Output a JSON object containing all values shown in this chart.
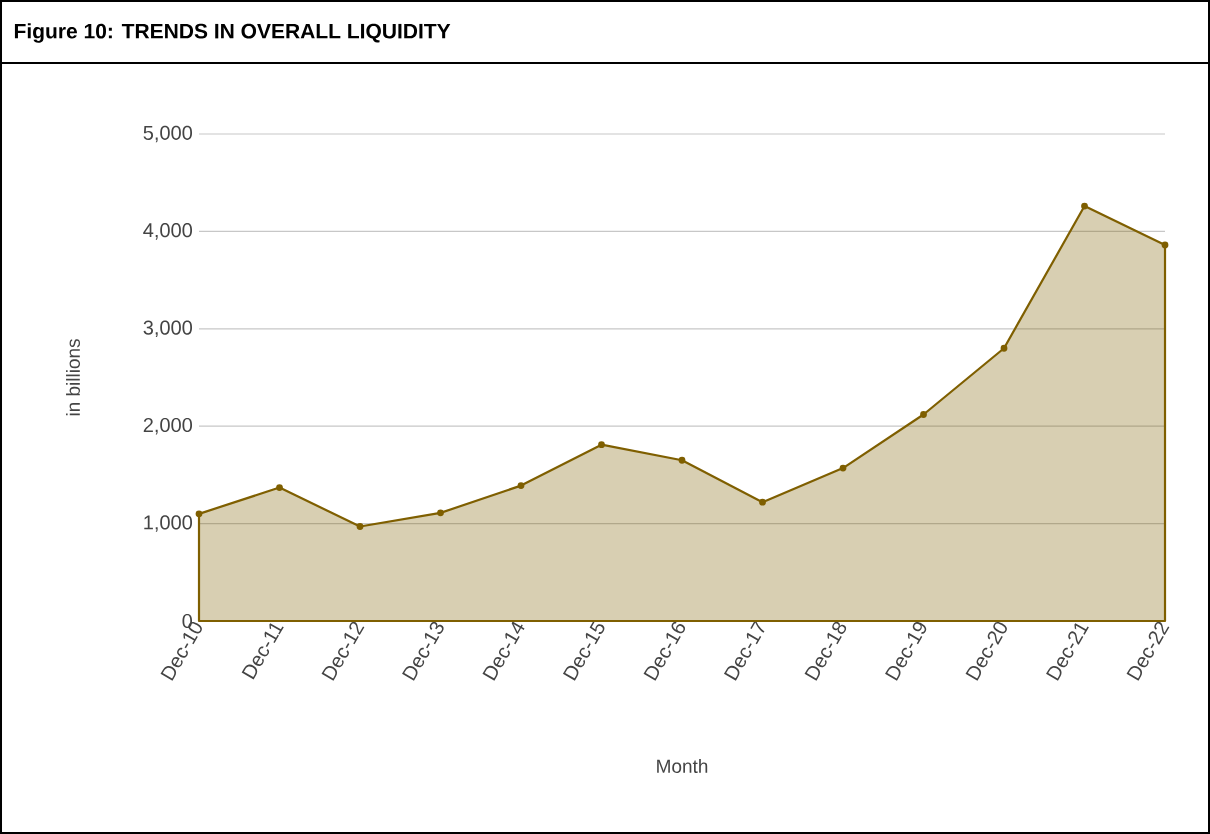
{
  "chart_data": {
    "type": "area",
    "title": "Figure 10: TRENDS IN OVERALL LIQUIDITY",
    "xlabel": "Month",
    "ylabel": "in billions",
    "categories": [
      "Dec-10",
      "Dec-11",
      "Dec-12",
      "Dec-13",
      "Dec-14",
      "Dec-15",
      "Dec-16",
      "Dec-17",
      "Dec-18",
      "Dec-19",
      "Dec-20",
      "Dec-21",
      "Dec-22"
    ],
    "series": [
      {
        "color": "#7f5f00",
        "values": [
          1100,
          1370,
          970,
          1110,
          1390,
          1810,
          1650,
          1220,
          1570,
          2120,
          2800,
          4260,
          3860
        ]
      }
    ],
    "ylim": [
      0,
      5000
    ],
    "yticks": [
      0,
      {
        "value": 1000,
        "label": "1,000"
      },
      {
        "value": 2000,
        "label": "2,000"
      },
      {
        "value": 3000,
        "label": "3,000"
      },
      {
        "value": 4000,
        "label": "4,000"
      },
      {
        "value": 5000,
        "label": "5,000"
      }
    ],
    "grid": "y",
    "marker": "circle",
    "line_style": "solid"
  }
}
